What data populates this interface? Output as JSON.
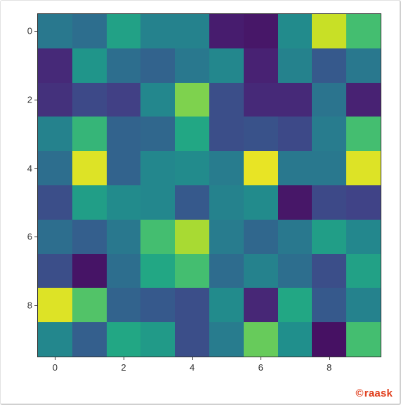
{
  "chart": {
    "type": "heatmap",
    "rows": 10,
    "cols": 10,
    "background_color": "#ffffff",
    "border_color": "#333333",
    "colormap": "viridis",
    "vmin": 0.0,
    "vmax": 1.0,
    "xticks": [
      0,
      2,
      4,
      6,
      8
    ],
    "yticks": [
      0,
      2,
      4,
      6,
      8
    ],
    "tick_fontsize": 13,
    "tick_color": "#333333",
    "values": [
      [
        0.5,
        0.45,
        0.72,
        0.55,
        0.55,
        0.1,
        0.08,
        0.6,
        0.95,
        0.8
      ],
      [
        0.15,
        0.65,
        0.45,
        0.4,
        0.5,
        0.58,
        0.12,
        0.55,
        0.35,
        0.5
      ],
      [
        0.18,
        0.28,
        0.24,
        0.58,
        0.88,
        0.3,
        0.15,
        0.15,
        0.48,
        0.12
      ],
      [
        0.55,
        0.78,
        0.4,
        0.42,
        0.75,
        0.3,
        0.32,
        0.28,
        0.52,
        0.8
      ],
      [
        0.45,
        0.97,
        0.4,
        0.58,
        0.6,
        0.52,
        0.98,
        0.5,
        0.5,
        0.97
      ],
      [
        0.3,
        0.7,
        0.6,
        0.58,
        0.35,
        0.55,
        0.6,
        0.08,
        0.28,
        0.25
      ],
      [
        0.45,
        0.38,
        0.5,
        0.8,
        0.92,
        0.52,
        0.42,
        0.5,
        0.7,
        0.58
      ],
      [
        0.3,
        0.07,
        0.45,
        0.75,
        0.8,
        0.44,
        0.55,
        0.45,
        0.3,
        0.72
      ],
      [
        0.97,
        0.82,
        0.4,
        0.35,
        0.3,
        0.6,
        0.14,
        0.75,
        0.35,
        0.55
      ],
      [
        0.58,
        0.38,
        0.75,
        0.68,
        0.3,
        0.52,
        0.85,
        0.62,
        0.06,
        0.8
      ]
    ]
  },
  "watermark": {
    "symbol": "©",
    "text": "raask",
    "color": "#e03c1a",
    "fontsize": 15
  }
}
